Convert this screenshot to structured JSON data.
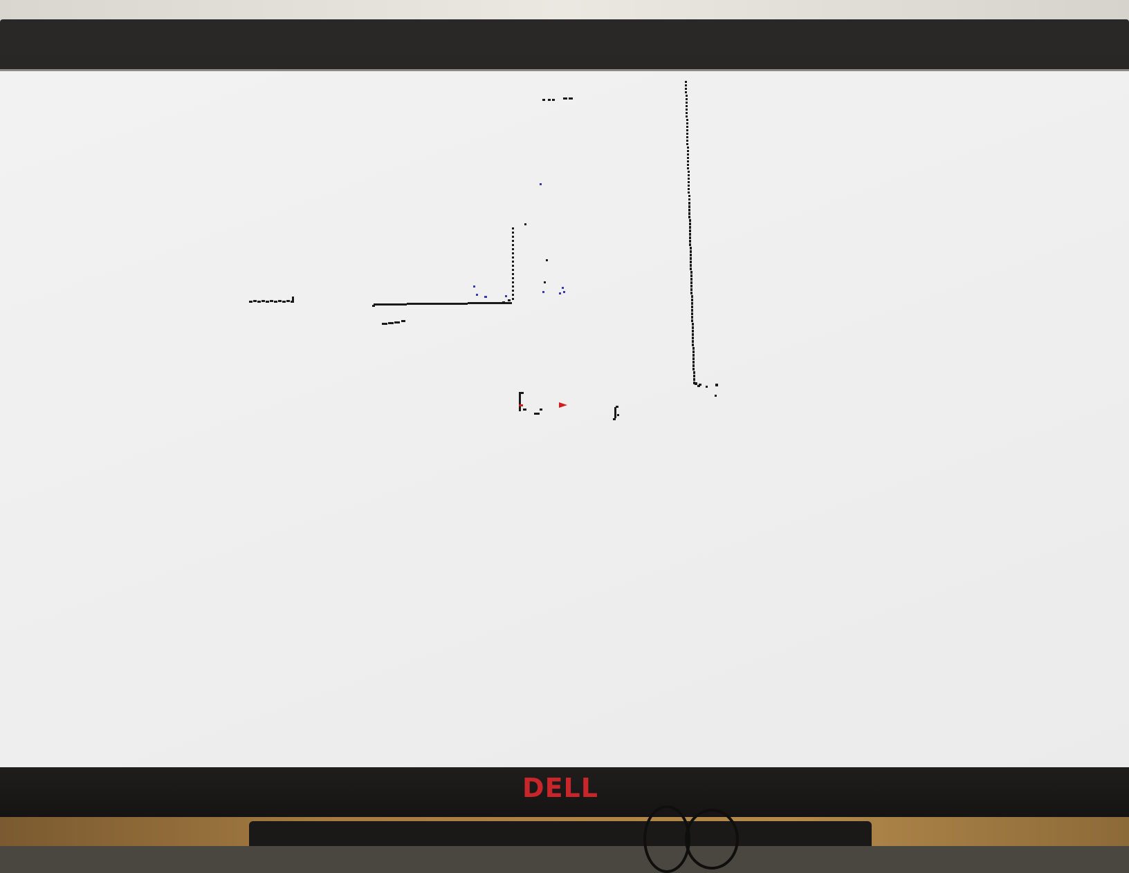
{
  "scene": {
    "device": "computer-monitor",
    "logo_text": "DELL",
    "logo_color": "#c8262a"
  },
  "map_view": {
    "background": "#efefef",
    "scan_color": "#1a1a1a",
    "highlight_color": "#3838b0",
    "robot_marker_color": "#d01e1e"
  }
}
